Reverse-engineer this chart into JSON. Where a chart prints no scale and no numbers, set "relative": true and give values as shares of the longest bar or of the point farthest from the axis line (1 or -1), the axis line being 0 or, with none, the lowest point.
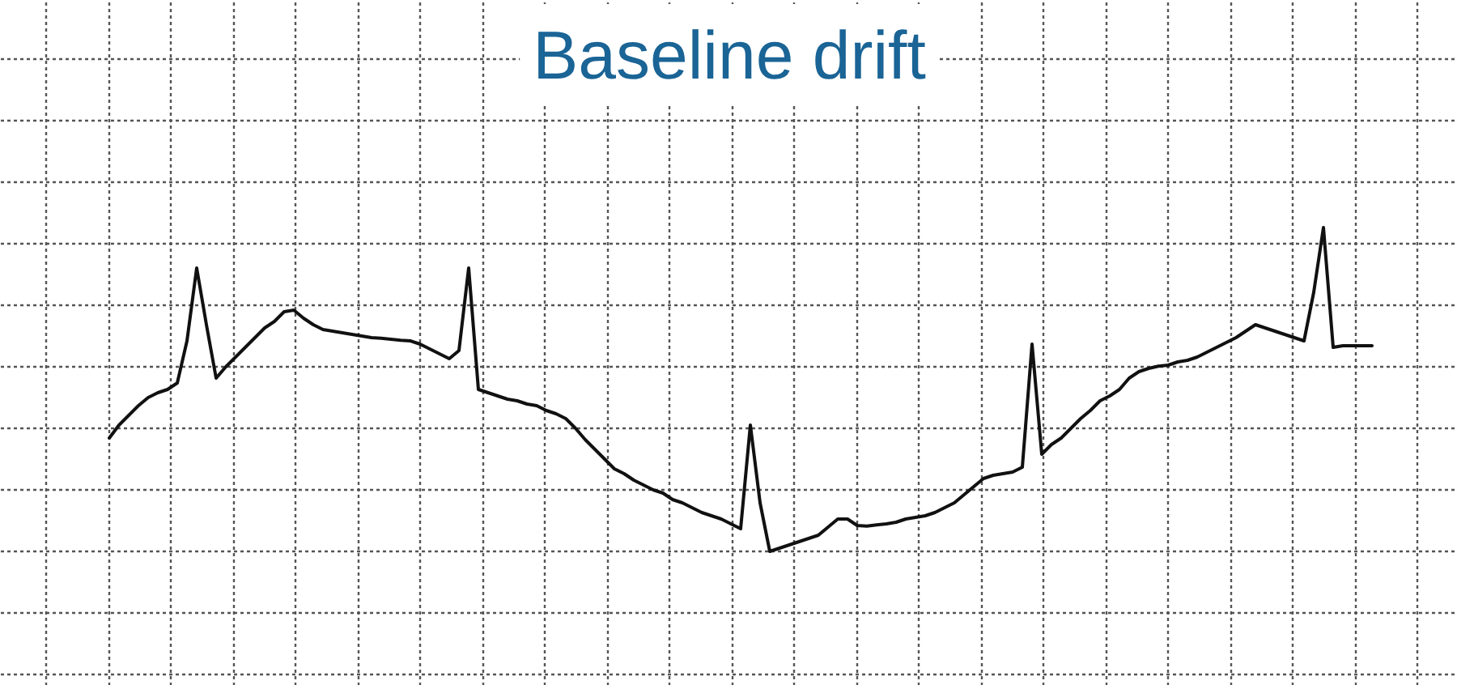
{
  "chart_data": {
    "type": "line",
    "title": "Baseline drift",
    "relative": true,
    "grid": true,
    "tick_labels": false,
    "marker": "none",
    "line_style": "solid",
    "categories": [
      null,
      null,
      null,
      null,
      null,
      null,
      null,
      null,
      null,
      null,
      null,
      null,
      null,
      null,
      null,
      null,
      null,
      null,
      null,
      null,
      null,
      null,
      null,
      null,
      null,
      null,
      null,
      null,
      null,
      null,
      null,
      null,
      null,
      null,
      null,
      null,
      null,
      null,
      null,
      null,
      null,
      null,
      null,
      null,
      null,
      null,
      null,
      null,
      null,
      null,
      null,
      null,
      null,
      null,
      null,
      null,
      null,
      null,
      null,
      null,
      null,
      null,
      null,
      null,
      null,
      null,
      null,
      null,
      null,
      null,
      null,
      null,
      null,
      null,
      null,
      null,
      null,
      null,
      null,
      null,
      null,
      null,
      null,
      null,
      null,
      null,
      null,
      null,
      null,
      null,
      null,
      null,
      null,
      null,
      null,
      null,
      null,
      null,
      null,
      null,
      null,
      null,
      null,
      null,
      null,
      null,
      null,
      null,
      null,
      null,
      null,
      null,
      null,
      null,
      null,
      null,
      null,
      null,
      null,
      null,
      null,
      null,
      null,
      null,
      null,
      null,
      null,
      null,
      null,
      null,
      null
    ],
    "series": [
      {
        "color": "#111111",
        "values": [
          0.35,
          0.39,
          0.42,
          0.45,
          0.475,
          0.49,
          0.5,
          0.52,
          0.65,
          0.875,
          0.7,
          0.535,
          0.57,
          0.6,
          0.63,
          0.66,
          0.69,
          0.71,
          0.74,
          0.745,
          0.72,
          0.7,
          0.685,
          0.68,
          0.675,
          0.67,
          0.665,
          0.66,
          0.658,
          0.655,
          0.652,
          0.65,
          0.64,
          0.625,
          0.61,
          0.595,
          0.62,
          0.875,
          0.5,
          0.49,
          0.48,
          0.47,
          0.465,
          0.455,
          0.45,
          0.435,
          0.425,
          0.41,
          0.38,
          0.345,
          0.315,
          0.285,
          0.255,
          0.24,
          0.22,
          0.205,
          0.19,
          0.18,
          0.16,
          0.15,
          0.135,
          0.12,
          0.11,
          0.1,
          0.085,
          0.07,
          0.39,
          0.15,
          0,
          0.01,
          0.02,
          0.03,
          0.04,
          0.05,
          0.075,
          0.1,
          0.1,
          0.08,
          0.078,
          0.082,
          0.085,
          0.09,
          0.1,
          0.105,
          0.11,
          0.12,
          0.135,
          0.15,
          0.175,
          0.2,
          0.225,
          0.235,
          0.24,
          0.245,
          0.26,
          0.64,
          0.3,
          0.33,
          0.35,
          0.38,
          0.41,
          0.435,
          0.465,
          0.48,
          0.5,
          0.535,
          0.555,
          0.565,
          0.572,
          0.575,
          0.585,
          0.59,
          0.6,
          0.615,
          0.63,
          0.645,
          0.66,
          0.68,
          0.7,
          0.69,
          0.68,
          0.67,
          0.66,
          0.65,
          0.8,
          1.0,
          0.63,
          0.635,
          0.635,
          0.635,
          0.635
        ]
      }
    ]
  }
}
